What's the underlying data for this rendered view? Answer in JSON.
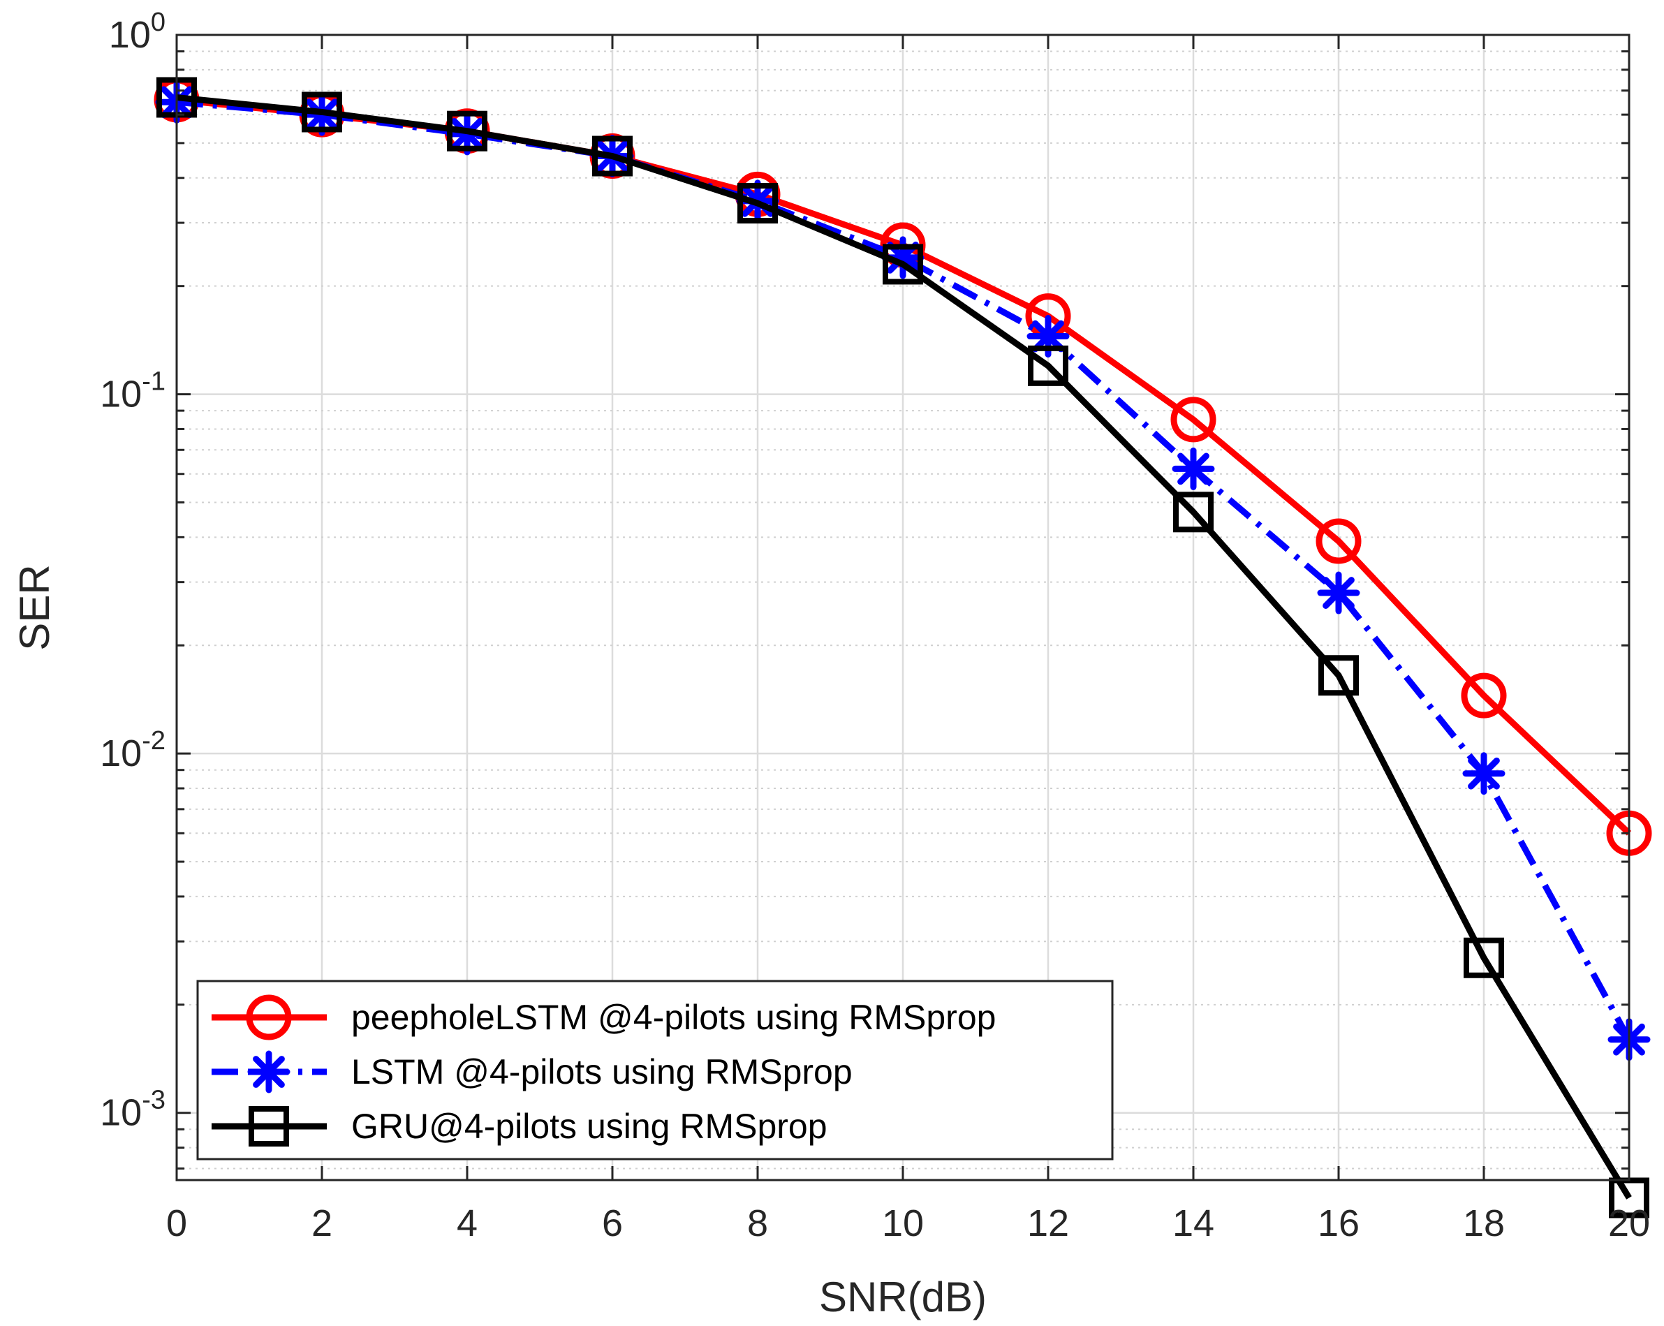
{
  "chart_data": {
    "type": "line",
    "title": "",
    "xlabel": "SNR(dB)",
    "ylabel": "SER",
    "x": [
      0,
      2,
      4,
      6,
      8,
      10,
      12,
      14,
      16,
      18,
      20
    ],
    "xlim": [
      0,
      20
    ],
    "ylim": [
      0.00065,
      1
    ],
    "yscale": "log",
    "grid": true,
    "minor_grid": true,
    "legend_position": "bottom-left",
    "x_ticks": [
      {
        "value": 0,
        "label": "0"
      },
      {
        "value": 2,
        "label": "2"
      },
      {
        "value": 4,
        "label": "4"
      },
      {
        "value": 6,
        "label": "6"
      },
      {
        "value": 8,
        "label": "8"
      },
      {
        "value": 10,
        "label": "10"
      },
      {
        "value": 12,
        "label": "12"
      },
      {
        "value": 14,
        "label": "14"
      },
      {
        "value": 16,
        "label": "16"
      },
      {
        "value": 18,
        "label": "18"
      },
      {
        "value": 20,
        "label": "20"
      }
    ],
    "y_ticks": [
      {
        "value": 1,
        "base": "10",
        "exp": "0"
      },
      {
        "value": 0.1,
        "base": "10",
        "exp": "-1"
      },
      {
        "value": 0.01,
        "base": "10",
        "exp": "-2"
      },
      {
        "value": 0.001,
        "base": "10",
        "exp": "-3"
      }
    ],
    "series": [
      {
        "name": "peepholeLSTM @4-pilots using RMSprop",
        "color": "#ff0000",
        "line_style": "solid",
        "marker": "circle",
        "values": [
          0.66,
          0.6,
          0.54,
          0.46,
          0.36,
          0.26,
          0.165,
          0.085,
          0.039,
          0.0145,
          0.006
        ]
      },
      {
        "name": "LSTM @4-pilots using RMSprop",
        "color": "#0000ff",
        "line_style": "dashdot",
        "marker": "asterisk",
        "values": [
          0.65,
          0.6,
          0.53,
          0.46,
          0.345,
          0.24,
          0.145,
          0.062,
          0.028,
          0.0088,
          0.0016
        ]
      },
      {
        "name": "GRU@4-pilots using RMSprop",
        "color": "#000000",
        "line_style": "solid",
        "marker": "square",
        "values": [
          0.67,
          0.61,
          0.54,
          0.46,
          0.34,
          0.23,
          0.12,
          0.047,
          0.0165,
          0.0027,
          0.00058
        ]
      }
    ]
  }
}
